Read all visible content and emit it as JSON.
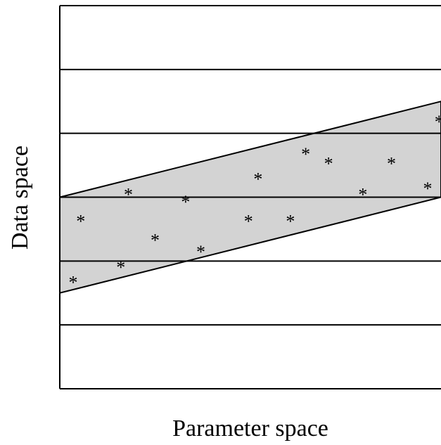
{
  "labels": {
    "x_axis": "Parameter space",
    "y_axis": "Data space"
  },
  "colors": {
    "band_fill": "#d3d3d3",
    "stroke": "#000000"
  },
  "points_marker": "*",
  "chart_data": {
    "type": "scatter",
    "xlabel": "Parameter space",
    "ylabel": "Data space",
    "xlim": [
      0,
      100
    ],
    "ylim": [
      0,
      100
    ],
    "horizontal_gridlines_y": [
      0,
      16.67,
      33.33,
      50,
      66.67,
      83.33,
      100
    ],
    "band": {
      "upper": {
        "x": [
          0,
          100
        ],
        "y": [
          50,
          75
        ]
      },
      "lower": {
        "x": [
          0,
          100
        ],
        "y": [
          25,
          50
        ]
      }
    },
    "points": [
      {
        "x": 3.5,
        "y": 28.5
      },
      {
        "x": 5.5,
        "y": 44.5
      },
      {
        "x": 16,
        "y": 32.5
      },
      {
        "x": 18,
        "y": 51.5
      },
      {
        "x": 25,
        "y": 39.5
      },
      {
        "x": 33,
        "y": 49.5
      },
      {
        "x": 37,
        "y": 36.5
      },
      {
        "x": 49.5,
        "y": 44.5
      },
      {
        "x": 52,
        "y": 55.5
      },
      {
        "x": 60.5,
        "y": 44.5
      },
      {
        "x": 64.5,
        "y": 62
      },
      {
        "x": 70.5,
        "y": 59.5
      },
      {
        "x": 79.5,
        "y": 51.5
      },
      {
        "x": 87,
        "y": 59.5
      },
      {
        "x": 96.5,
        "y": 53
      },
      {
        "x": 99.5,
        "y": 70.5
      }
    ]
  }
}
